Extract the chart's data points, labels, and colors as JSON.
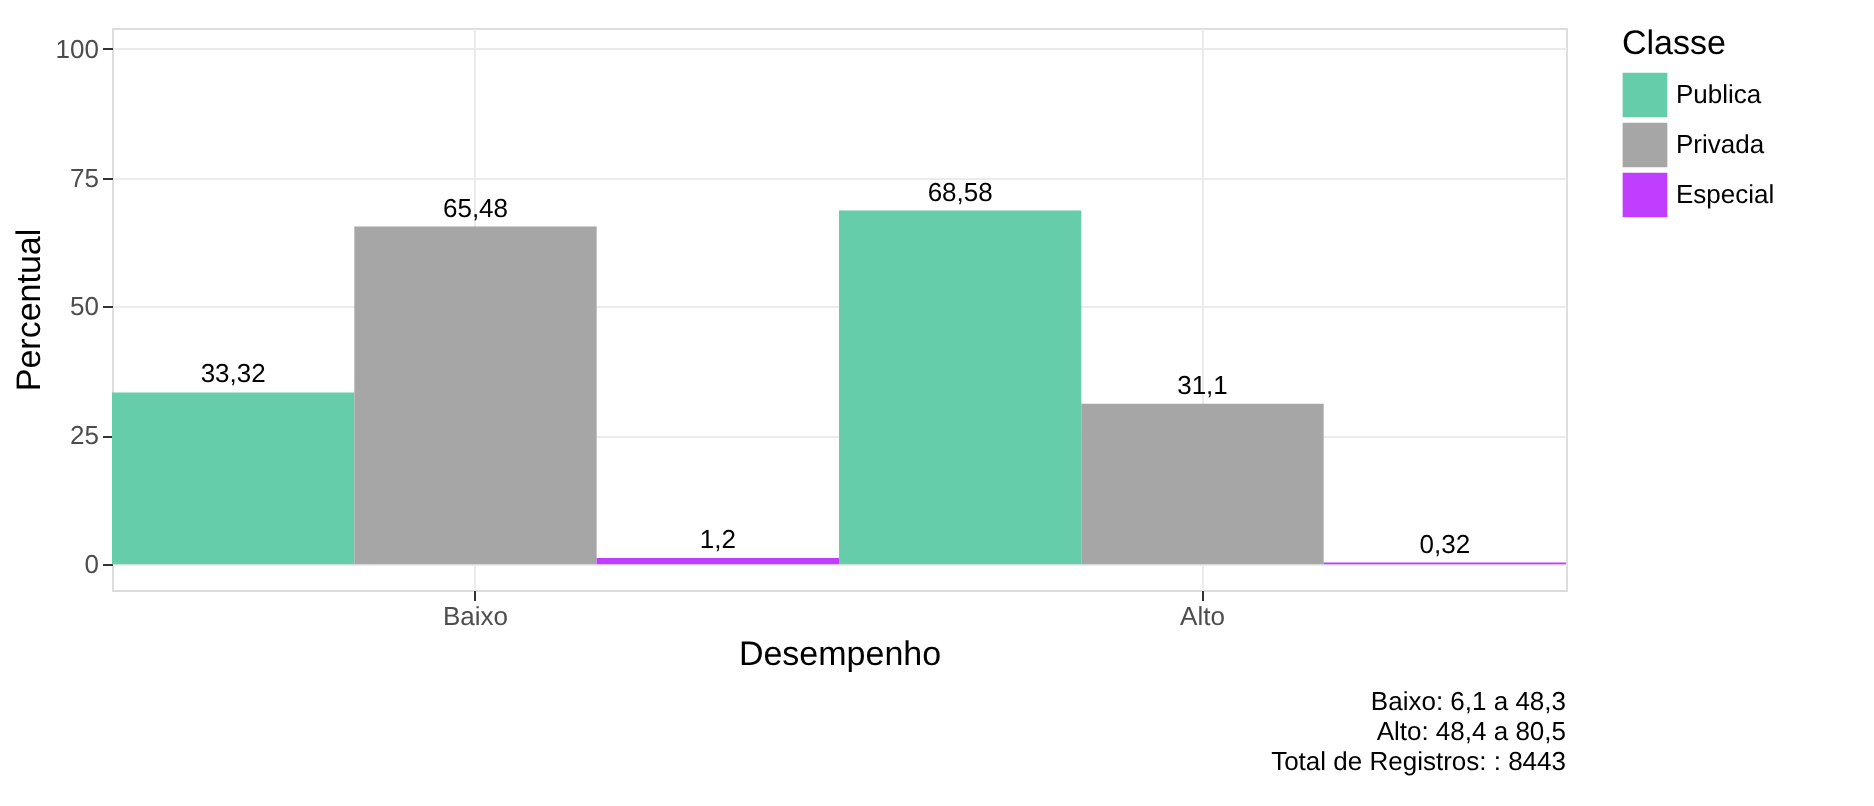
{
  "chart_data": {
    "type": "bar",
    "xlabel": "Desempenho",
    "ylabel": "Percentual",
    "legend_title": "Classe",
    "categories": [
      "Baixo",
      "Alto"
    ],
    "series": [
      {
        "name": "Publica",
        "color": "#66cdaa",
        "values": [
          33.32,
          68.58
        ],
        "value_labels": [
          "33,32",
          "68,58"
        ]
      },
      {
        "name": "Privada",
        "color": "#a6a6a6",
        "values": [
          65.48,
          31.1
        ],
        "value_labels": [
          "65,48",
          "31,1"
        ]
      },
      {
        "name": "Especial",
        "color": "#bf3eff",
        "values": [
          1.2,
          0.32
        ],
        "value_labels": [
          "1,2",
          "0,32"
        ]
      }
    ],
    "ylim": [
      -5,
      104
    ],
    "yticks": [
      0,
      25,
      50,
      75,
      100
    ],
    "grid": true,
    "legend": "right",
    "annotations": [
      "Baixo: 6,1 a 48,3",
      "Alto: 48,4 a 80,5",
      "Total de Registros: : 8443"
    ]
  }
}
